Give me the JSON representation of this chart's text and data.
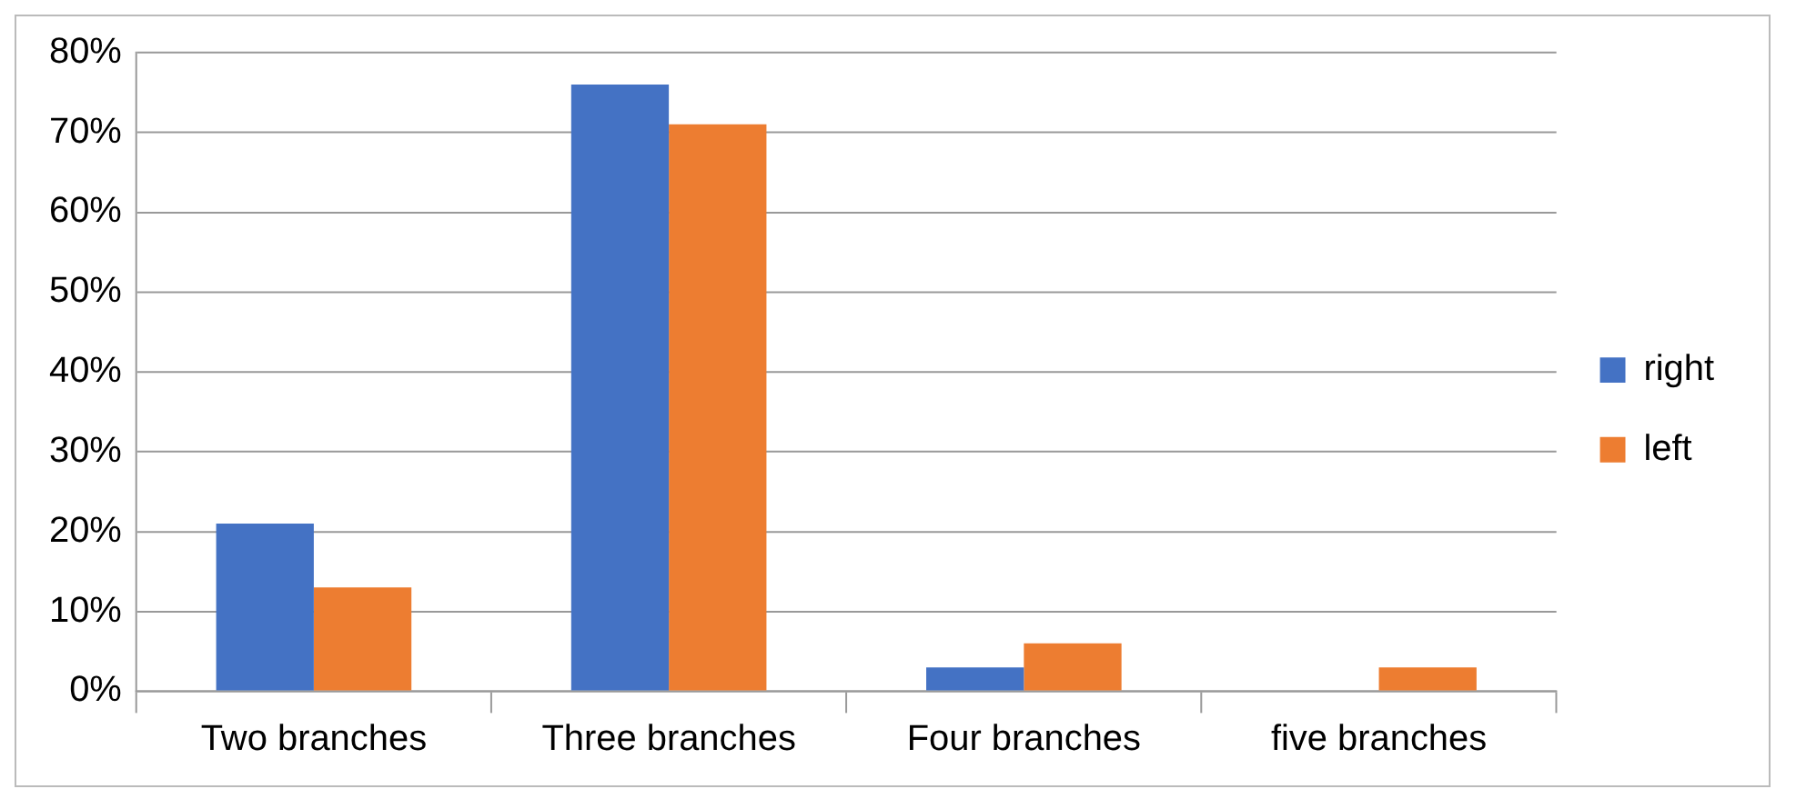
{
  "chart_data": {
    "type": "bar",
    "categories": [
      "Two branches",
      "Three branches",
      "Four branches",
      "five branches"
    ],
    "series": [
      {
        "name": "right",
        "color": "#4472c4",
        "values": [
          21,
          76,
          3,
          0
        ]
      },
      {
        "name": "left",
        "color": "#ed7d31",
        "values": [
          13,
          71,
          6,
          3
        ]
      }
    ],
    "ylim": [
      0,
      80
    ],
    "yticks": [
      {
        "value": 0,
        "label": "0%"
      },
      {
        "value": 10,
        "label": "10%"
      },
      {
        "value": 20,
        "label": "20%"
      },
      {
        "value": 30,
        "label": "30%"
      },
      {
        "value": 40,
        "label": "40%"
      },
      {
        "value": 50,
        "label": "50%"
      },
      {
        "value": 60,
        "label": "60%"
      },
      {
        "value": 70,
        "label": "70%"
      },
      {
        "value": 80,
        "label": "80%"
      }
    ],
    "grid": "y",
    "legend": "right"
  }
}
